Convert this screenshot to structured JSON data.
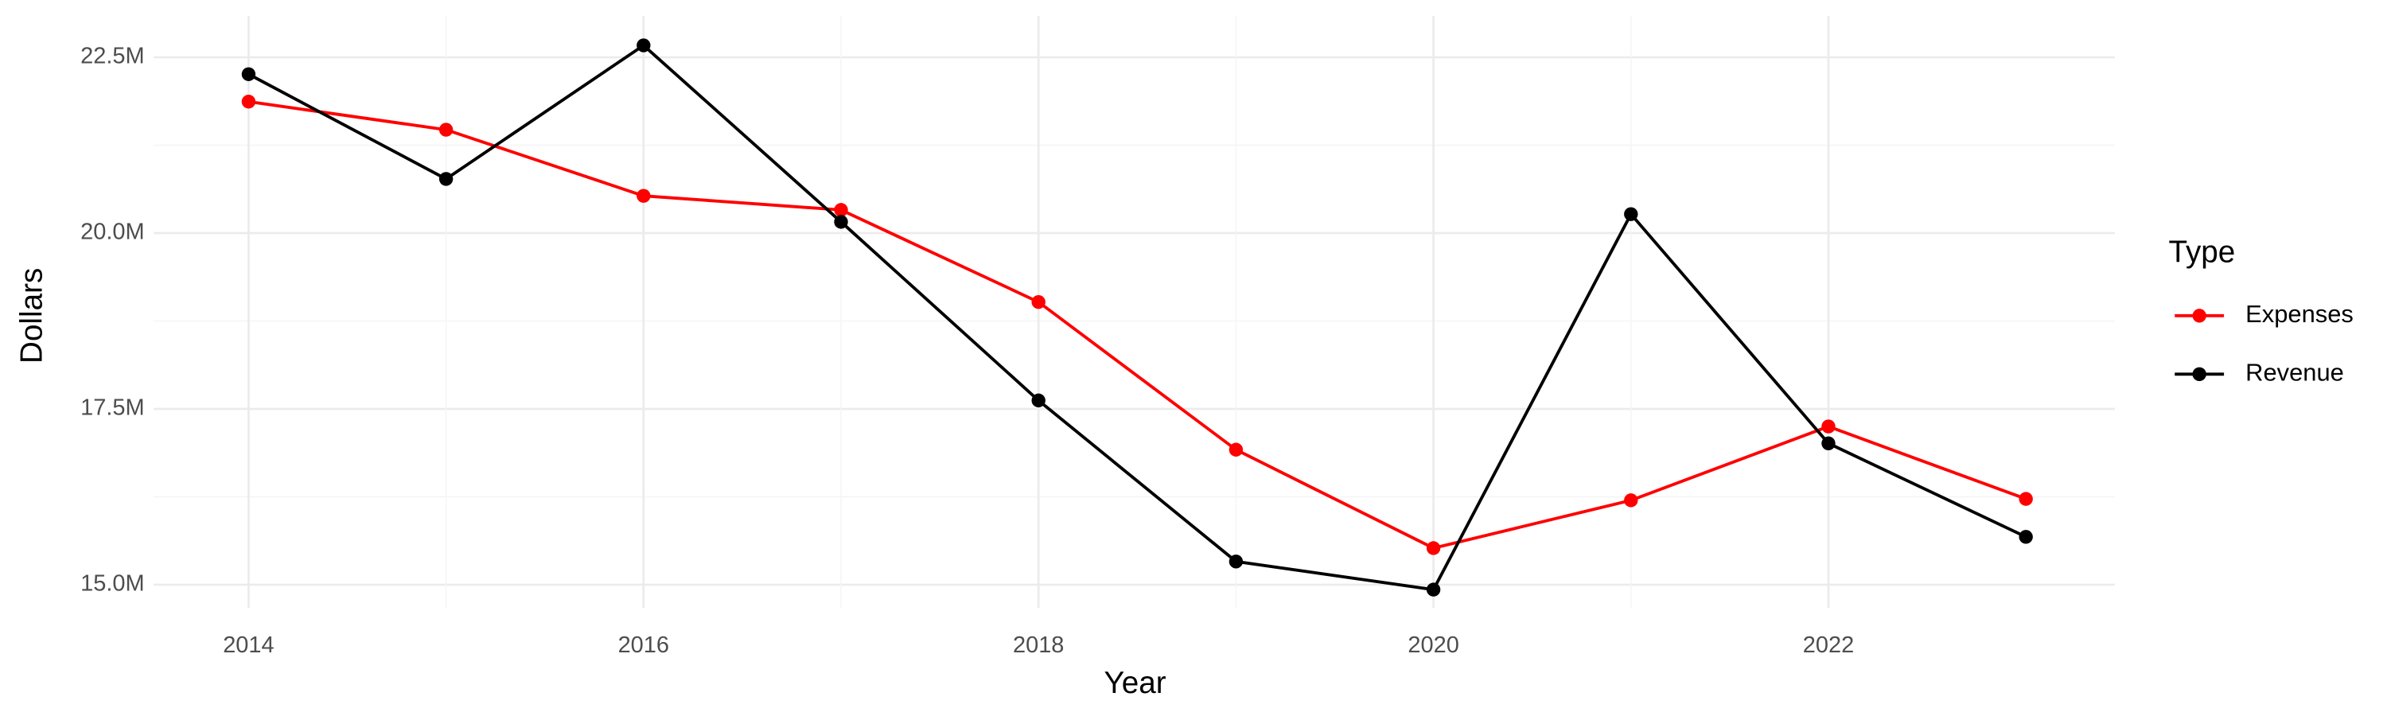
{
  "chart_data": {
    "type": "line",
    "x_label": "Year",
    "y_label": "Dollars",
    "legend_title": "Type",
    "x": [
      2014,
      2015,
      2016,
      2017,
      2018,
      2019,
      2020,
      2021,
      2022,
      2023
    ],
    "series": [
      {
        "name": "Expenses",
        "color": "#ff0000",
        "values": [
          21870000,
          21470000,
          20530000,
          20330000,
          19020000,
          16920000,
          15520000,
          16200000,
          17250000,
          16220000
        ]
      },
      {
        "name": "Revenue",
        "color": "#000000",
        "values": [
          22260000,
          20770000,
          22670000,
          20160000,
          17620000,
          15330000,
          14930000,
          20270000,
          17010000,
          15680000
        ]
      }
    ],
    "xlim": [
      2013.52,
      2023.45
    ],
    "xticks": [
      2014,
      2016,
      2018,
      2020,
      2022
    ],
    "ylim": [
      14670000,
      23090000
    ],
    "yticks": [
      {
        "value": 15000000,
        "label": "15.0M"
      },
      {
        "value": 17500000,
        "label": "17.5M"
      },
      {
        "value": 20000000,
        "label": "20.0M"
      },
      {
        "value": 22500000,
        "label": "22.5M"
      }
    ],
    "grid": true,
    "legend": "right"
  }
}
